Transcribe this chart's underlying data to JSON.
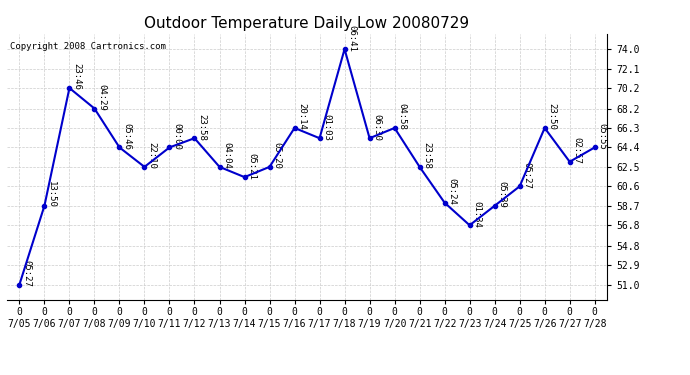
{
  "title": "Outdoor Temperature Daily Low 20080729",
  "copyright": "Copyright 2008 Cartronics.com",
  "dates": [
    "07/05",
    "07/06",
    "07/07",
    "07/08",
    "07/09",
    "07/10",
    "07/11",
    "07/12",
    "07/13",
    "07/14",
    "07/15",
    "07/16",
    "07/17",
    "07/18",
    "07/19",
    "07/20",
    "07/21",
    "07/22",
    "07/23",
    "07/24",
    "07/25",
    "07/26",
    "07/27",
    "07/28"
  ],
  "values": [
    51.0,
    58.7,
    70.2,
    68.2,
    64.4,
    62.5,
    64.4,
    65.3,
    62.5,
    61.5,
    62.5,
    66.3,
    65.3,
    74.0,
    65.3,
    66.3,
    62.5,
    59.0,
    56.8,
    58.7,
    60.6,
    66.3,
    63.0,
    64.4
  ],
  "times": [
    "05:27",
    "13:50",
    "23:46",
    "04:29",
    "05:46",
    "22:10",
    "00:00",
    "23:58",
    "04:04",
    "05:21",
    "05:20",
    "20:14",
    "01:03",
    "06:41",
    "06:30",
    "04:58",
    "23:58",
    "05:24",
    "01:34",
    "05:39",
    "05:27",
    "23:50",
    "02:57",
    "05:55"
  ],
  "line_color": "#0000cc",
  "marker_color": "#0000cc",
  "bg_color": "#ffffff",
  "grid_color": "#cccccc",
  "title_fontsize": 11,
  "ylabel_values": [
    51.0,
    52.9,
    54.8,
    56.8,
    58.7,
    60.6,
    62.5,
    64.4,
    66.3,
    68.2,
    70.2,
    72.1,
    74.0
  ],
  "ylim": [
    49.5,
    75.5
  ],
  "xlim": [
    -0.5,
    23.5
  ],
  "label_fontsize": 6.5,
  "tick_fontsize": 7,
  "copyright_fontsize": 6.5
}
